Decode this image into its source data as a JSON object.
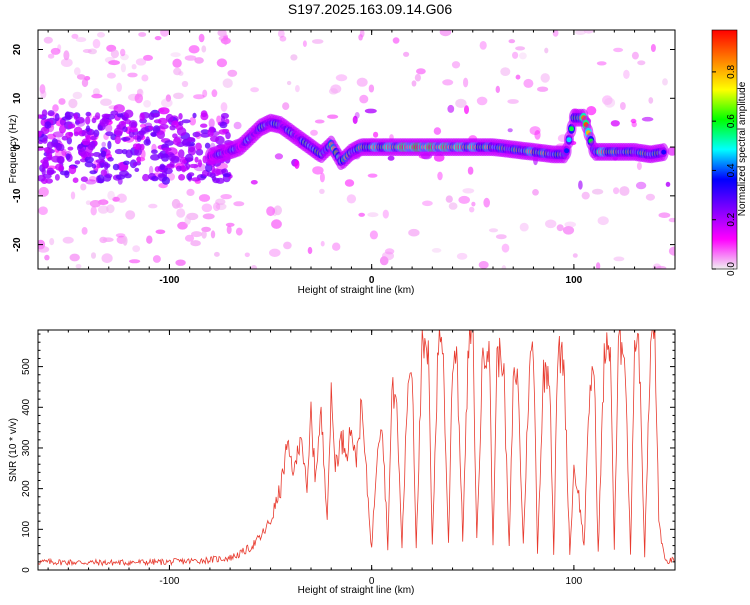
{
  "title": "S197.2025.163.09.14.G06",
  "chart_data": [
    {
      "type": "heatmap",
      "xlabel": "Height of straight line (km)",
      "ylabel": "Frequency (Hz)",
      "xlim": [
        -165,
        150
      ],
      "ylim": [
        -25,
        24
      ],
      "xticks": [
        -100,
        0,
        100
      ],
      "yticks": [
        -20,
        -10,
        0,
        10,
        20
      ],
      "colorbar": {
        "label": "Normalized spectral amplitude",
        "range": [
          0.0,
          0.97
        ],
        "ticks": [
          0.0,
          0.2,
          0.4,
          0.6,
          0.8
        ],
        "colormap": [
          "#f0f0f0",
          "#ff00ff",
          "#8000ff",
          "#0000ff",
          "#00ffff",
          "#00ff00",
          "#ffff00",
          "#ff8000",
          "#ff0000"
        ]
      },
      "ridge": [
        {
          "x": -80,
          "f": -2,
          "amp": 0.35
        },
        {
          "x": -72,
          "f": -1,
          "amp": 0.4
        },
        {
          "x": -65,
          "f": 0,
          "amp": 0.35
        },
        {
          "x": -60,
          "f": 2,
          "amp": 0.4
        },
        {
          "x": -55,
          "f": 4,
          "amp": 0.45
        },
        {
          "x": -50,
          "f": 5,
          "amp": 0.5
        },
        {
          "x": -45,
          "f": 4.5,
          "amp": 0.45
        },
        {
          "x": -40,
          "f": 3,
          "amp": 0.45
        },
        {
          "x": -35,
          "f": 1.5,
          "amp": 0.4
        },
        {
          "x": -30,
          "f": 0,
          "amp": 0.6
        },
        {
          "x": -25,
          "f": -1.5,
          "amp": 0.5
        },
        {
          "x": -20,
          "f": 0.5,
          "amp": 0.6
        },
        {
          "x": -15,
          "f": -3,
          "amp": 0.65
        },
        {
          "x": -10,
          "f": -1,
          "amp": 0.55
        },
        {
          "x": -5,
          "f": 0,
          "amp": 0.6
        },
        {
          "x": 0,
          "f": 0,
          "amp": 0.7
        },
        {
          "x": 10,
          "f": 0,
          "amp": 0.75
        },
        {
          "x": 20,
          "f": 0,
          "amp": 0.9
        },
        {
          "x": 30,
          "f": 0,
          "amp": 0.85
        },
        {
          "x": 40,
          "f": 0,
          "amp": 0.8
        },
        {
          "x": 50,
          "f": 0,
          "amp": 0.75
        },
        {
          "x": 60,
          "f": 0,
          "amp": 0.6
        },
        {
          "x": 70,
          "f": -0.5,
          "amp": 0.55
        },
        {
          "x": 80,
          "f": -1,
          "amp": 0.7
        },
        {
          "x": 90,
          "f": -1.5,
          "amp": 0.55
        },
        {
          "x": 96,
          "f": -1.5,
          "amp": 0.5
        },
        {
          "x": 100,
          "f": 6,
          "amp": 0.5
        },
        {
          "x": 105,
          "f": 6,
          "amp": 0.9
        },
        {
          "x": 110,
          "f": -1,
          "amp": 0.5
        },
        {
          "x": 115,
          "f": -1,
          "amp": 0.8
        },
        {
          "x": 120,
          "f": -1,
          "amp": 0.6
        },
        {
          "x": 130,
          "f": -1,
          "amp": 0.55
        },
        {
          "x": 138,
          "f": -1.5,
          "amp": 0.6
        },
        {
          "x": 145,
          "f": -1,
          "amp": 0.45
        }
      ]
    },
    {
      "type": "line",
      "xlabel": "Height of straight line (km)",
      "ylabel": "SNR (10 * v/v)",
      "xlim": [
        -165,
        150
      ],
      "ylim": [
        0,
        590
      ],
      "xticks": [
        -100,
        0,
        100
      ],
      "yticks": [
        0,
        100,
        200,
        300,
        400,
        500
      ],
      "color": "#e83a2e",
      "series": [
        {
          "x": [
            -165,
            -130,
            -100,
            -90,
            -80,
            -70,
            -65,
            -60,
            -55,
            -50,
            -45,
            -42,
            -38,
            -35,
            -32,
            -30,
            -28,
            -25,
            -22,
            -20,
            -18,
            -15,
            -12,
            -10,
            -8,
            -5,
            -3,
            0,
            3,
            5,
            8,
            10,
            12,
            15,
            18,
            20,
            22,
            25,
            28,
            30,
            33,
            35,
            38,
            40,
            42,
            45,
            48,
            50,
            52,
            55,
            58,
            60,
            62,
            65,
            68,
            70,
            72,
            75,
            78,
            80,
            82,
            85,
            88,
            90,
            92,
            95,
            98,
            100,
            102,
            105,
            108,
            110,
            112,
            115,
            118,
            120,
            122,
            125,
            128,
            130,
            132,
            135,
            138,
            140,
            142,
            145,
            150
          ],
          "y": [
            20,
            18,
            20,
            22,
            25,
            30,
            40,
            55,
            80,
            120,
            200,
            300,
            240,
            350,
            180,
            390,
            230,
            380,
            140,
            420,
            260,
            320,
            300,
            360,
            260,
            400,
            260,
            50,
            320,
            380,
            60,
            430,
            440,
            60,
            470,
            510,
            60,
            540,
            520,
            70,
            560,
            580,
            60,
            520,
            550,
            80,
            560,
            590,
            70,
            540,
            560,
            60,
            520,
            530,
            50,
            450,
            500,
            60,
            500,
            540,
            50,
            480,
            500,
            40,
            530,
            520,
            40,
            250,
            200,
            60,
            460,
            500,
            40,
            520,
            560,
            50,
            540,
            570,
            40,
            560,
            580,
            40,
            550,
            590,
            120,
            20,
            25
          ]
        }
      ]
    }
  ]
}
